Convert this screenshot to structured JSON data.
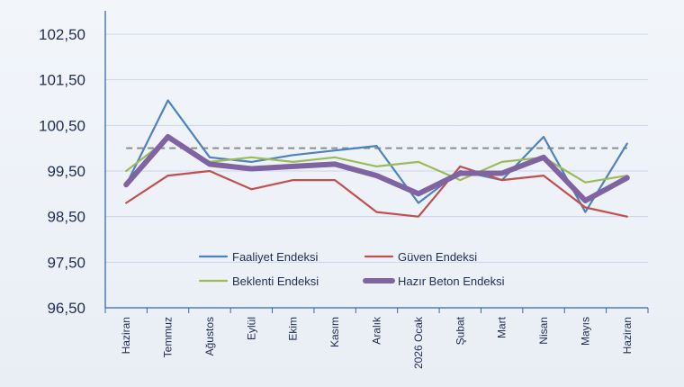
{
  "chart_data": {
    "type": "line",
    "categories": [
      "Haziran",
      "Temmuz",
      "Ağustos",
      "Eylül",
      "Ekim",
      "Kasım",
      "Aralık",
      "2026 Ocak",
      "Şubat",
      "Mart",
      "Nisan",
      "Mayıs",
      "Haziran"
    ],
    "series": [
      {
        "name": "Faaliyet Endeksi",
        "color": "#4f81bd",
        "values": [
          99.2,
          101.05,
          99.8,
          99.7,
          99.85,
          99.95,
          100.05,
          98.8,
          99.5,
          99.3,
          100.25,
          98.6,
          100.1
        ]
      },
      {
        "name": "Güven Endeksi",
        "color": "#c0504d",
        "values": [
          98.8,
          99.4,
          99.5,
          99.1,
          99.3,
          99.3,
          98.6,
          98.5,
          99.6,
          99.3,
          99.4,
          98.7,
          98.5
        ]
      },
      {
        "name": "Beklenti Endeksi",
        "color": "#9bbb59",
        "values": [
          99.5,
          100.2,
          99.7,
          99.8,
          99.7,
          99.8,
          99.6,
          99.7,
          99.3,
          99.7,
          99.8,
          99.25,
          99.4
        ]
      },
      {
        "name": "Hazır Beton Endeksi",
        "color": "#8064a2",
        "values": [
          99.2,
          100.25,
          99.65,
          99.55,
          99.6,
          99.65,
          99.4,
          99.0,
          99.45,
          99.45,
          99.8,
          98.85,
          99.35
        ]
      }
    ],
    "reference_line": {
      "value": 100,
      "color": "#8c8c8c"
    },
    "yticks": [
      "102,50",
      "101,50",
      "100,50",
      "99,50",
      "98,50",
      "97,50",
      "96,50"
    ],
    "ylim": [
      96.5,
      102.5
    ],
    "grid": true,
    "legend": "inside-bottom-center",
    "title": "",
    "xlabel": "",
    "ylabel": ""
  }
}
